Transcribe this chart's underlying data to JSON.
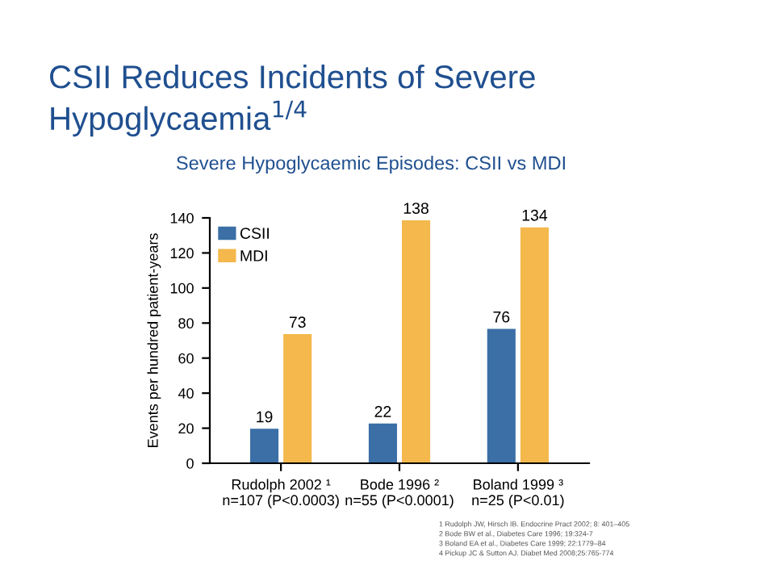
{
  "chart_data": {
    "type": "bar",
    "title": "CSII Reduces Incidents of Severe Hypoglycaemia$^{1/4}$",
    "subtitle": "Severe Hypoglycaemic Episodes: CSII vs MDI",
    "ylabel": "Events per hundred patient-years",
    "categories": [
      "Rudolph 2002 ¹\nn=107 (P<0.0003)",
      "Bode 1996 ²\nn=55 (P<0.0001)",
      "Boland 1999 ³\nn=25 (P<0.01)"
    ],
    "series": [
      {
        "name": "CSII",
        "color": "#3b6fa6",
        "values": [
          19,
          22,
          76
        ]
      },
      {
        "name": "MDI",
        "color": "#f4b84c",
        "values": [
          73,
          138,
          134
        ]
      }
    ],
    "ylim": [
      0,
      140
    ],
    "yticks": [
      0,
      20,
      40,
      60,
      80,
      100,
      120,
      140
    ],
    "grid": false,
    "legend": "top left",
    "data_labels": true,
    "annotations": [
      "1 Rudolph JW, Hirsch IB. Endocrine Pract 2002; 8: 401–405",
      "2 Bode BW et al., Diabetes Care 1996; 19:324-7",
      "3 Boland EA et al., Diabetes Care 1999; 22:1779–84",
      "4 Pickup JC & Sutton AJ. Diabet Med 2008;25:765-774"
    ]
  }
}
